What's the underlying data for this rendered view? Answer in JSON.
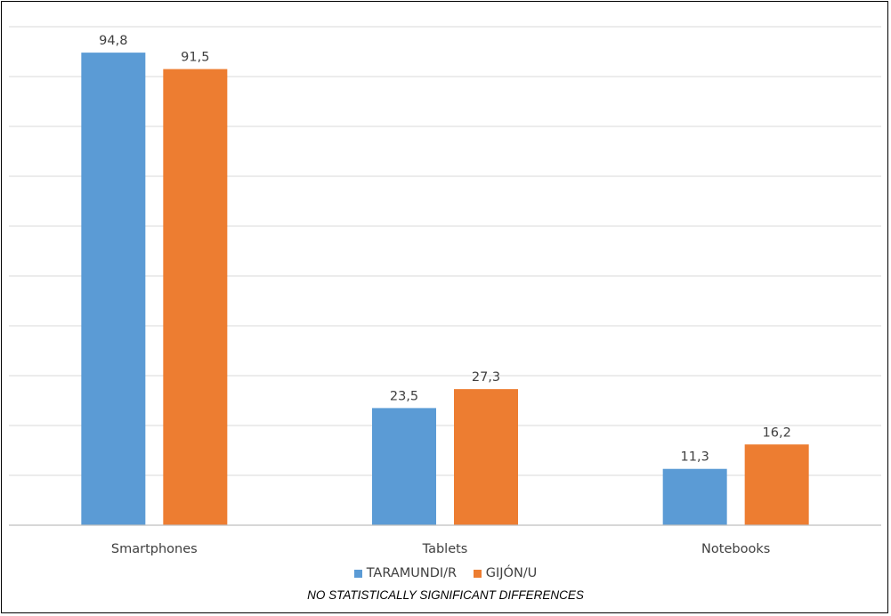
{
  "chart_data": {
    "type": "bar",
    "categories": [
      "Smartphones",
      "Tablets",
      "Notebooks"
    ],
    "series": [
      {
        "name": "TARAMUNDI/R",
        "color": "#5b9bd5",
        "values": [
          94.8,
          23.5,
          11.3
        ],
        "labels": [
          "94,8",
          "23,5",
          "11,3"
        ]
      },
      {
        "name": "GIJÓN/U",
        "color": "#ed7d31",
        "values": [
          91.5,
          27.3,
          16.2
        ],
        "labels": [
          "91,5",
          "27,3",
          "16,2"
        ]
      }
    ],
    "ylim": [
      0,
      100
    ],
    "grid": true,
    "legend_position": "bottom",
    "gridline_color": "#d9d9d9",
    "note": "NO STATISTICALLY SIGNIFICANT DIFFERENCES"
  }
}
